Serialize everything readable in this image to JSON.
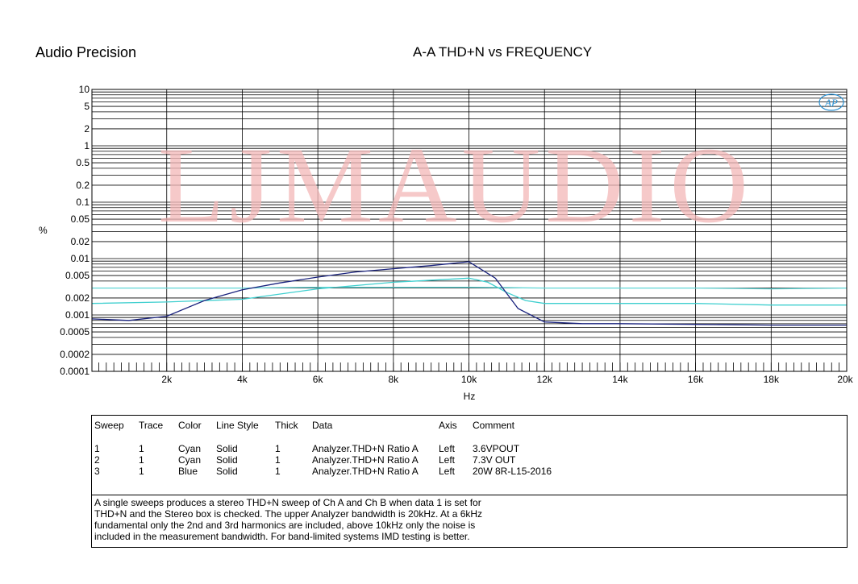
{
  "header": {
    "brand": "Audio Precision",
    "title": "A-A THD+N vs FREQUENCY"
  },
  "watermark": "LJMAUDIO",
  "logo_text": "AP",
  "chart_data": {
    "type": "line",
    "title": "A-A THD+N vs FREQUENCY",
    "xlabel": "Hz",
    "ylabel": "%",
    "x_scale": "linear",
    "y_scale": "log",
    "xlim": [
      20,
      20000
    ],
    "ylim": [
      0.0001,
      10
    ],
    "grid": true,
    "x_ticks": [
      {
        "value": 2000,
        "label": "2k"
      },
      {
        "value": 4000,
        "label": "4k"
      },
      {
        "value": 6000,
        "label": "6k"
      },
      {
        "value": 8000,
        "label": "8k"
      },
      {
        "value": 10000,
        "label": "10k"
      },
      {
        "value": 12000,
        "label": "12k"
      },
      {
        "value": 14000,
        "label": "14k"
      },
      {
        "value": 16000,
        "label": "16k"
      },
      {
        "value": 18000,
        "label": "18k"
      },
      {
        "value": 20000,
        "label": "20k"
      }
    ],
    "y_ticks": [
      {
        "value": 10,
        "label": "10"
      },
      {
        "value": 5,
        "label": "5"
      },
      {
        "value": 2,
        "label": "2"
      },
      {
        "value": 1,
        "label": "1"
      },
      {
        "value": 0.5,
        "label": "0.5"
      },
      {
        "value": 0.2,
        "label": "0.2"
      },
      {
        "value": 0.1,
        "label": "0.1"
      },
      {
        "value": 0.05,
        "label": "0.05"
      },
      {
        "value": 0.02,
        "label": "0.02"
      },
      {
        "value": 0.01,
        "label": "0.01"
      },
      {
        "value": 0.005,
        "label": "0.005"
      },
      {
        "value": 0.002,
        "label": "0.002"
      },
      {
        "value": 0.001,
        "label": "0.001"
      },
      {
        "value": 0.0005,
        "label": "0.0005"
      },
      {
        "value": 0.0002,
        "label": "0.0002"
      },
      {
        "value": 0.0001,
        "label": "0.0001"
      }
    ],
    "series": [
      {
        "color": "#3fcfcf",
        "x": [
          20,
          2000,
          4000,
          6000,
          8000,
          10000,
          10500,
          11000,
          11500,
          12000,
          14000,
          16000,
          18000,
          20000
        ],
        "y": [
          0.0016,
          0.0017,
          0.0019,
          0.0029,
          0.0038,
          0.0045,
          0.0038,
          0.0025,
          0.0018,
          0.0016,
          0.0016,
          0.0016,
          0.0015,
          0.0015
        ]
      },
      {
        "color": "#5fd6d6",
        "x": [
          20,
          2000,
          4000,
          6000,
          8000,
          10000,
          12000,
          14000,
          16000,
          18000,
          20000
        ],
        "y": [
          0.003,
          0.003,
          0.003,
          0.0031,
          0.0031,
          0.0031,
          0.003,
          0.003,
          0.003,
          0.0029,
          0.003
        ]
      },
      {
        "color": "#1a237e",
        "x": [
          20,
          1000,
          2000,
          3000,
          4000,
          5000,
          6000,
          7000,
          8000,
          9000,
          10000,
          10700,
          11300,
          12000,
          13000,
          14000,
          16000,
          18000,
          20000
        ],
        "y": [
          0.00085,
          0.0008,
          0.00095,
          0.0018,
          0.0028,
          0.0037,
          0.0047,
          0.0058,
          0.0066,
          0.0075,
          0.0088,
          0.0045,
          0.0013,
          0.00075,
          0.0007,
          0.0007,
          0.00068,
          0.00066,
          0.00066
        ]
      }
    ]
  },
  "legend": {
    "headers": [
      "Sweep",
      "Trace",
      "Color",
      "Line Style",
      "Thick",
      "Data",
      "Axis",
      "Comment"
    ],
    "rows": [
      [
        "1",
        "1",
        "Cyan",
        "Solid",
        "1",
        "Analyzer.THD+N Ratio A",
        "Left",
        "3.6VPOUT"
      ],
      [
        "2",
        "1",
        "Cyan",
        "Solid",
        "1",
        "Analyzer.THD+N Ratio A",
        "Left",
        "7.3V OUT"
      ],
      [
        "3",
        "1",
        "Blue",
        "Solid",
        "1",
        "Analyzer.THD+N Ratio A",
        "Left",
        "20W 8R-L15-2016"
      ]
    ],
    "note_lines": [
      "A single sweeps produces a stereo THD+N sweep of Ch A and Ch B when data 1 is set for",
      "THD+N and the Stereo box is checked.  The upper Analyzer bandwidth is 20kHz.  At a 6kHz",
      "fundamental only the 2nd and 3rd harmonics are included, above 10kHz only the noise is",
      "included in the measurement bandwidth.  For band-limited systems IMD testing is better."
    ]
  }
}
